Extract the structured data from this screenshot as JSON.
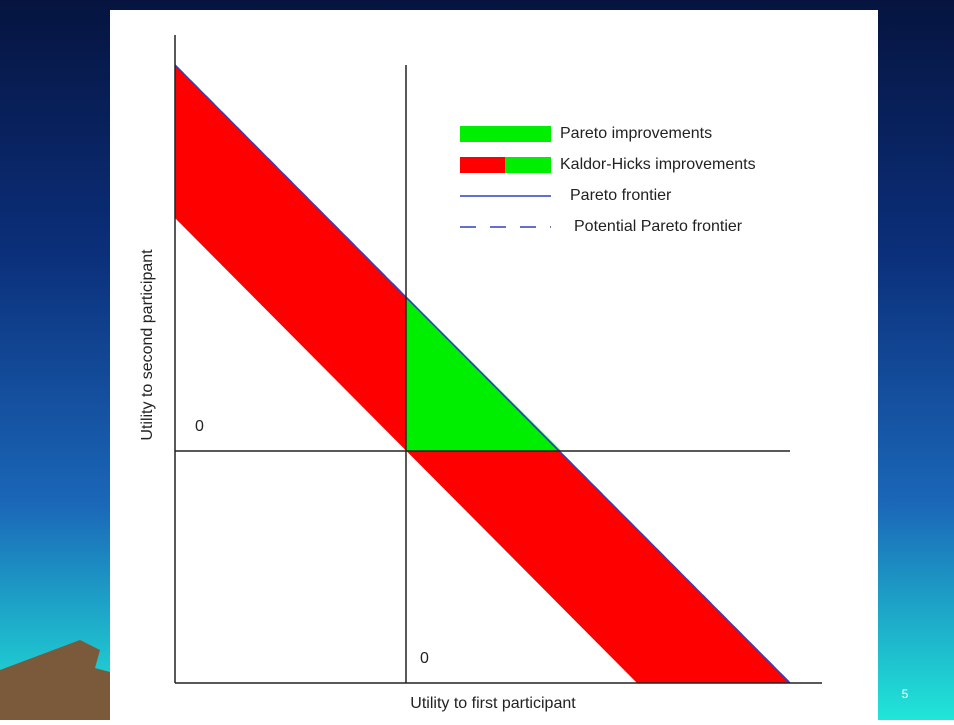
{
  "legend": {
    "items": [
      "Pareto improvements",
      "Kaldor-Hicks improvements",
      "Pareto frontier",
      "Potential Pareto frontier"
    ]
  },
  "axes": {
    "x_label": "Utility to first participant",
    "y_label": "Utility to second participant",
    "x_origin_label": "0",
    "y_origin_label": "0"
  },
  "slide_number": "5"
}
